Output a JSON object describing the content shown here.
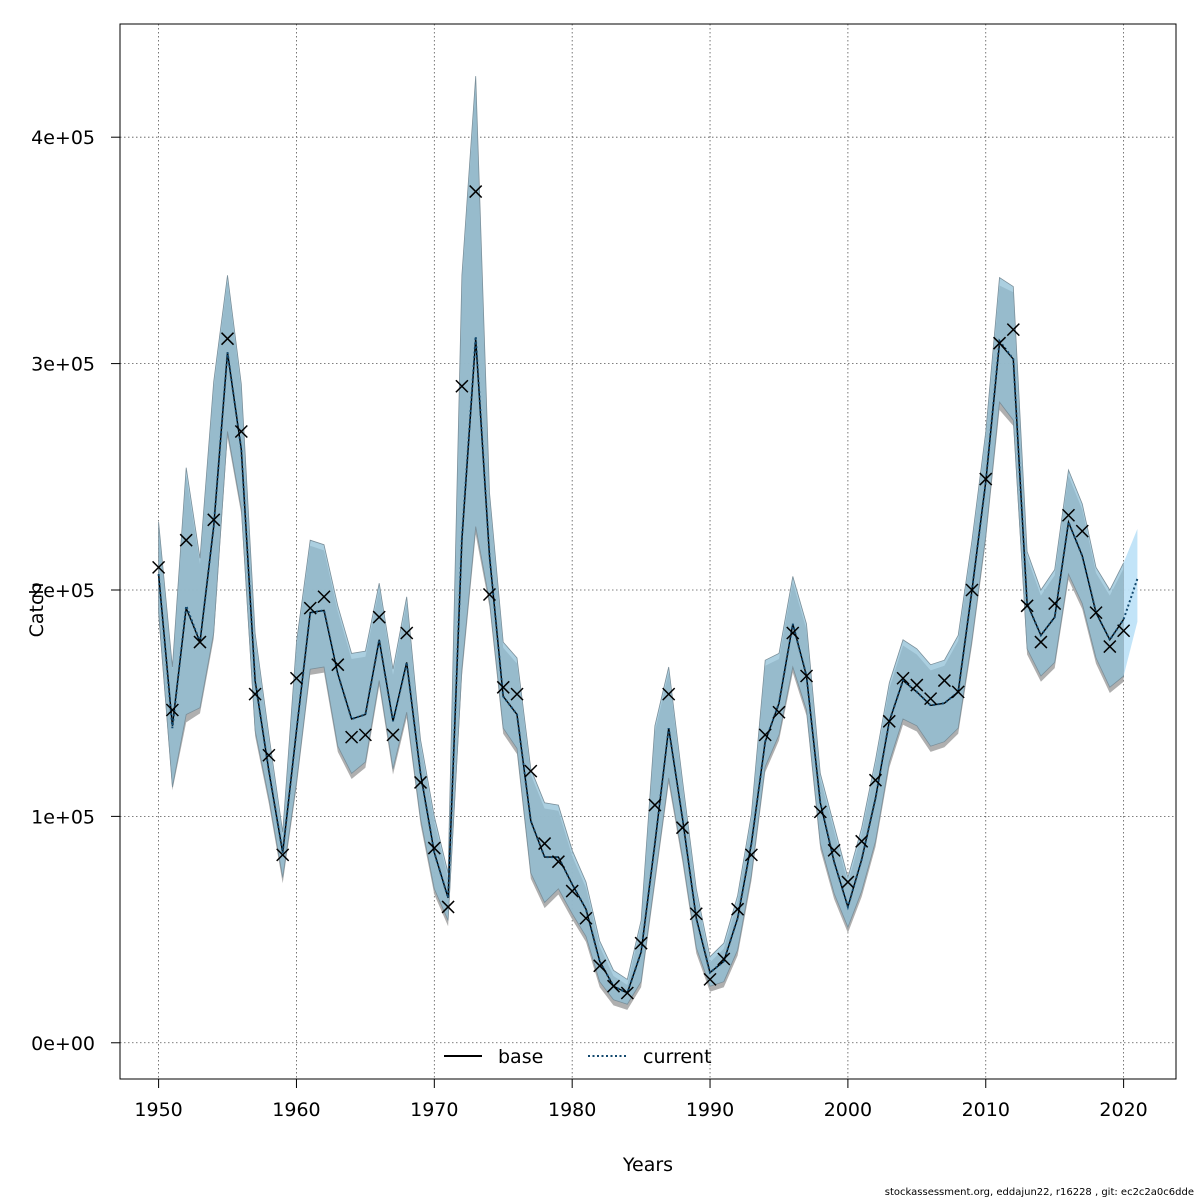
{
  "chart_data": {
    "type": "line",
    "title": "",
    "xlabel": "Years",
    "ylabel": "Catch",
    "xlim": [
      1947.2,
      2023.8
    ],
    "ylim": [
      -16000,
      450000
    ],
    "x_ticks": [
      1950,
      1960,
      1970,
      1980,
      1990,
      2000,
      2010,
      2020
    ],
    "x_tick_labels": [
      "1950",
      "1960",
      "1970",
      "1980",
      "1990",
      "2000",
      "2010",
      "2020"
    ],
    "y_ticks": [
      0,
      100000,
      200000,
      300000,
      400000
    ],
    "y_tick_labels": [
      "0e+00",
      "1e+05",
      "2e+05",
      "3e+05",
      "4e+05"
    ],
    "grid": true,
    "legend_position": "bottom-center",
    "legend": [
      {
        "name": "base",
        "color": "#000000",
        "style": "solid"
      },
      {
        "name": "current",
        "color": "#1f5d8a",
        "style": "dotted"
      }
    ],
    "colors": {
      "band_base": "#a6a6a6",
      "band_current": "#8fbfd6",
      "band_current_final": "#bfe3f8",
      "line_base": "#000000",
      "line_current": "#13496e",
      "marker": "#000000"
    },
    "observed": {
      "name": "observed",
      "years": [
        1950,
        1951,
        1952,
        1953,
        1954,
        1955,
        1956,
        1957,
        1958,
        1959,
        1960,
        1961,
        1962,
        1963,
        1964,
        1965,
        1966,
        1967,
        1968,
        1969,
        1970,
        1971,
        1972,
        1973,
        1974,
        1975,
        1976,
        1977,
        1978,
        1979,
        1980,
        1981,
        1982,
        1983,
        1984,
        1985,
        1986,
        1987,
        1988,
        1989,
        1990,
        1991,
        1992,
        1993,
        1994,
        1995,
        1996,
        1997,
        1998,
        1999,
        2000,
        2001,
        2002,
        2003,
        2004,
        2005,
        2006,
        2007,
        2008,
        2009,
        2010,
        2011,
        2012,
        2013,
        2014,
        2015,
        2016,
        2017,
        2018,
        2019,
        2020
      ],
      "values": [
        210000,
        147000,
        222000,
        177000,
        231000,
        311000,
        270000,
        154000,
        127000,
        83000,
        161000,
        192000,
        197000,
        167000,
        135000,
        136000,
        188000,
        136000,
        181000,
        115000,
        86000,
        60000,
        290000,
        376000,
        198000,
        157000,
        154000,
        120000,
        88000,
        80000,
        67000,
        55000,
        34000,
        25000,
        22000,
        44000,
        105000,
        154000,
        95000,
        57000,
        28000,
        37000,
        59000,
        83000,
        136000,
        146000,
        181000,
        162000,
        102000,
        85000,
        71000,
        89000,
        116000,
        142000,
        161000,
        158000,
        152000,
        160000,
        155000,
        200000,
        249000,
        309000,
        315000,
        193000,
        177000,
        194000,
        233000,
        226000,
        190000,
        175000,
        182000
      ]
    },
    "series": [
      {
        "name": "base",
        "x": [
          1950,
          1951,
          1952,
          1953,
          1954,
          1955,
          1956,
          1957,
          1958,
          1959,
          1960,
          1961,
          1962,
          1963,
          1964,
          1965,
          1966,
          1967,
          1968,
          1969,
          1970,
          1971,
          1972,
          1973,
          1974,
          1975,
          1976,
          1977,
          1978,
          1979,
          1980,
          1981,
          1982,
          1983,
          1984,
          1985,
          1986,
          1987,
          1988,
          1989,
          1990,
          1991,
          1992,
          1993,
          1994,
          1995,
          1996,
          1997,
          1998,
          1999,
          2000,
          2001,
          2002,
          2003,
          2004,
          2005,
          2006,
          2007,
          2008,
          2009,
          2010,
          2011,
          2012,
          2013,
          2014,
          2015,
          2016,
          2017,
          2018,
          2019,
          2020
        ],
        "values": [
          207000,
          140000,
          192000,
          177000,
          228000,
          305000,
          262000,
          160000,
          120000,
          84000,
          138000,
          190000,
          191000,
          163000,
          143000,
          145000,
          178000,
          142000,
          168000,
          119000,
          84000,
          64000,
          222000,
          311000,
          215000,
          153000,
          145000,
          98000,
          82000,
          82000,
          70000,
          59000,
          36000,
          25000,
          22000,
          40000,
          88000,
          139000,
          99000,
          55000,
          31000,
          36000,
          55000,
          88000,
          133000,
          150000,
          185000,
          162000,
          106000,
          80000,
          60000,
          81000,
          108000,
          142000,
          160000,
          155000,
          149000,
          150000,
          155000,
          200000,
          248000,
          309000,
          302000,
          194000,
          180000,
          188000,
          230000,
          215000,
          190000,
          178000,
          187000
        ]
      },
      {
        "name": "current",
        "x": [
          1950,
          1951,
          1952,
          1953,
          1954,
          1955,
          1956,
          1957,
          1958,
          1959,
          1960,
          1961,
          1962,
          1963,
          1964,
          1965,
          1966,
          1967,
          1968,
          1969,
          1970,
          1971,
          1972,
          1973,
          1974,
          1975,
          1976,
          1977,
          1978,
          1979,
          1980,
          1981,
          1982,
          1983,
          1984,
          1985,
          1986,
          1987,
          1988,
          1989,
          1990,
          1991,
          1992,
          1993,
          1994,
          1995,
          1996,
          1997,
          1998,
          1999,
          2000,
          2001,
          2002,
          2003,
          2004,
          2005,
          2006,
          2007,
          2008,
          2009,
          2010,
          2011,
          2012,
          2013,
          2014,
          2015,
          2016,
          2017,
          2018,
          2019,
          2020,
          2021
        ],
        "values": [
          207000,
          139000,
          193000,
          177000,
          228000,
          305000,
          262000,
          160000,
          120000,
          84000,
          138000,
          190000,
          191000,
          163000,
          143000,
          145000,
          178000,
          142000,
          168000,
          119000,
          84000,
          64000,
          223000,
          312000,
          215000,
          153000,
          145000,
          98000,
          82000,
          82000,
          70000,
          59000,
          36000,
          25000,
          22000,
          40000,
          88000,
          139000,
          99000,
          55000,
          31000,
          36000,
          55000,
          88000,
          133000,
          150000,
          185000,
          162000,
          106000,
          80000,
          60000,
          81000,
          108000,
          142000,
          160000,
          155000,
          149000,
          150000,
          155000,
          200000,
          248000,
          310000,
          302000,
          194000,
          180000,
          188000,
          230000,
          215000,
          190000,
          178000,
          187000,
          205000
        ],
        "lower": [
          190000,
          113000,
          145000,
          148000,
          181000,
          270000,
          236000,
          138000,
          108000,
          73000,
          115000,
          165000,
          166000,
          131000,
          119000,
          124000,
          160000,
          121000,
          146000,
          99000,
          68000,
          54000,
          165000,
          228000,
          195000,
          139000,
          130000,
          75000,
          62000,
          68000,
          57000,
          47000,
          27000,
          19000,
          17000,
          27000,
          72000,
          117000,
          82000,
          42000,
          25000,
          27000,
          41000,
          74000,
          122000,
          136000,
          166000,
          147000,
          88000,
          66000,
          51000,
          67000,
          89000,
          124000,
          143000,
          140000,
          131000,
          133000,
          139000,
          178000,
          224000,
          283000,
          275000,
          174000,
          162000,
          168000,
          207000,
          194000,
          170000,
          157000,
          162000,
          186000
        ],
        "upper": [
          230000,
          166000,
          254000,
          214000,
          292000,
          339000,
          291000,
          181000,
          136000,
          93000,
          177000,
          222000,
          220000,
          193000,
          172000,
          173000,
          203000,
          165000,
          197000,
          134000,
          100000,
          75000,
          339000,
          427000,
          243000,
          177000,
          170000,
          121000,
          106000,
          105000,
          85000,
          71000,
          45000,
          32000,
          28000,
          54000,
          140000,
          166000,
          116000,
          68000,
          38000,
          44000,
          65000,
          101000,
          169000,
          172000,
          206000,
          185000,
          119000,
          96000,
          73000,
          95000,
          125000,
          159000,
          178000,
          174000,
          167000,
          169000,
          180000,
          222000,
          270000,
          338000,
          334000,
          217000,
          200000,
          209000,
          253000,
          238000,
          210000,
          200000,
          212000,
          227000
        ]
      }
    ]
  },
  "footer": "stockassessment.org, eddajun22, r16228 , git: ec2c2a0c6dde"
}
